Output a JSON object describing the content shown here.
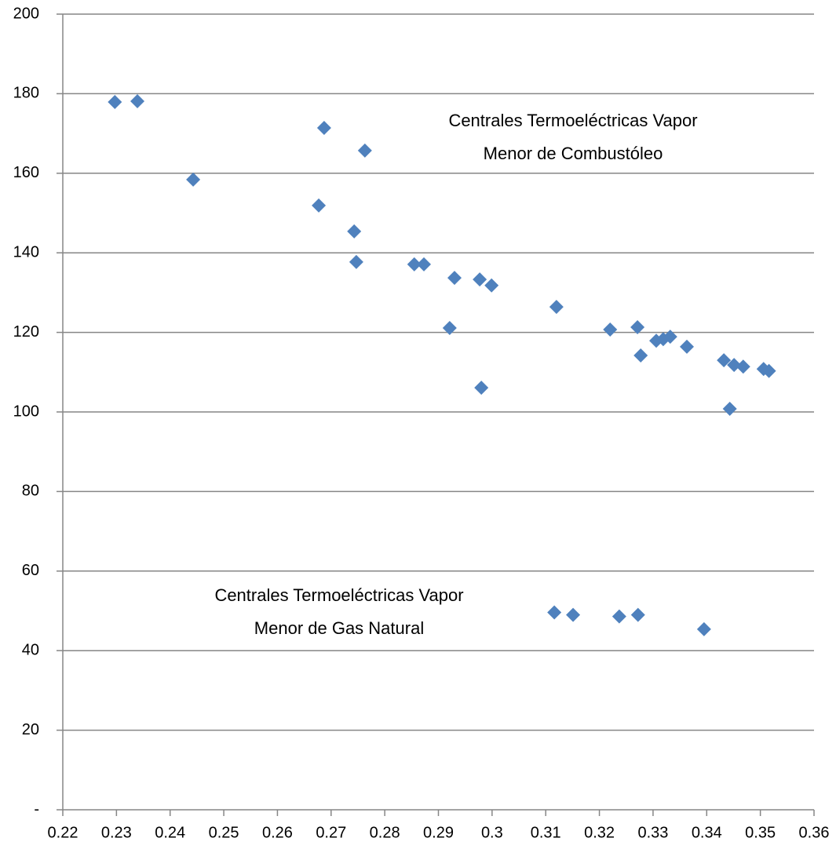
{
  "chart_data": {
    "type": "scatter",
    "annotations": [
      [
        "Centrales Termoeléctricas Vapor",
        "Menor de Combustóleo"
      ],
      [
        "Centrales Termoeléctricas Vapor",
        "Menor de Gas Natural"
      ]
    ],
    "series": [
      {
        "color": "#4f81bd",
        "x": [
          0.2297,
          0.2339,
          0.2443,
          0.2687,
          0.2763,
          0.2677,
          0.2743,
          0.2747,
          0.2855,
          0.2873,
          0.293,
          0.2977,
          0.2999,
          0.2921,
          0.298,
          0.312,
          0.322,
          0.3271,
          0.3277,
          0.3306,
          0.3319,
          0.3332,
          0.3363,
          0.3432,
          0.3451,
          0.3468,
          0.3506,
          0.3516,
          0.3443,
          0.3116,
          0.3151,
          0.3237,
          0.3272,
          0.3395
        ],
        "values": [
          177.9,
          178.1,
          158.4,
          171.4,
          165.7,
          151.9,
          145.4,
          137.7,
          137.1,
          137.1,
          133.7,
          133.3,
          131.8,
          121.1,
          106.1,
          126.4,
          120.7,
          121.3,
          114.2,
          117.9,
          118.3,
          118.9,
          116.4,
          113.0,
          111.8,
          111.4,
          110.8,
          110.3,
          100.8,
          49.6,
          49.0,
          48.6,
          49.0,
          45.4
        ]
      }
    ],
    "xlim": [
      0.22,
      0.36
    ],
    "xticks": [
      0.22,
      0.23,
      0.24,
      0.25,
      0.26,
      0.27,
      0.28,
      0.29,
      0.3,
      0.31,
      0.32,
      0.33,
      0.34,
      0.35,
      0.36
    ],
    "ylim": [
      0,
      200
    ],
    "yticks": [
      {
        "value": 0,
        "label": "-"
      },
      20,
      40,
      60,
      80,
      100,
      120,
      140,
      160,
      180,
      200
    ],
    "grid": true
  }
}
